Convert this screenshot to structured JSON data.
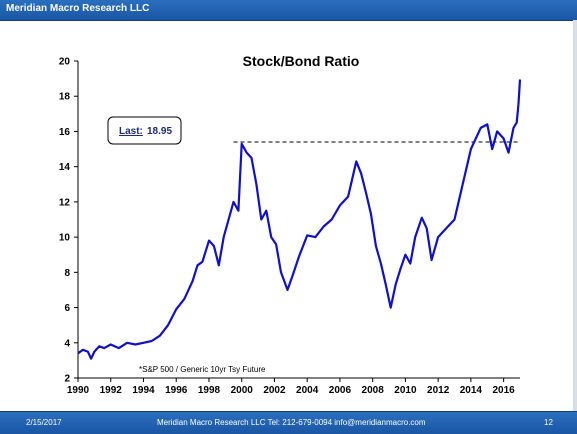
{
  "header": {
    "title": "Meridian Macro Research LLC"
  },
  "footer": {
    "date": "2/15/2017",
    "info": "Meridian Macro Research LLC   Tel: 212-679-0094   info@meridianmacro.com",
    "page": "12"
  },
  "colors": {
    "bar": "#1f5fb0",
    "line": "#1010c8",
    "reference": "#000000"
  },
  "chart_data": {
    "type": "line",
    "title": "Stock/Bond Ratio",
    "annotation": "*S&P 500 / Generic 10yr Tsy Future",
    "last_box": {
      "label": "Last:",
      "value": "18.95"
    },
    "reference_line": {
      "y": 15.4,
      "x_start": 1999.5,
      "style": "dashed"
    },
    "xlim": [
      1990,
      2017
    ],
    "ylim": [
      2,
      20
    ],
    "x_ticks": [
      1990,
      1992,
      1994,
      1996,
      1998,
      2000,
      2002,
      2004,
      2006,
      2008,
      2010,
      2012,
      2014,
      2016
    ],
    "y_ticks": [
      2,
      4,
      6,
      8,
      10,
      12,
      14,
      16,
      18,
      20
    ],
    "grid": false,
    "series": [
      {
        "x": [
          1990,
          1990.3,
          1990.6,
          1990.8,
          1991,
          1991.3,
          1991.6,
          1992,
          1992.5,
          1993,
          1993.5,
          1994,
          1994.5,
          1995,
          1995.5,
          1996,
          1996.5,
          1997,
          1997.3,
          1997.6,
          1998,
          1998.3,
          1998.6,
          1998.9,
          1999.2,
          1999.5,
          1999.8,
          2000,
          2000.3,
          2000.6,
          2000.9,
          2001.2,
          2001.5,
          2001.8,
          2002.1,
          2002.4,
          2002.8,
          2003.1,
          2003.5,
          2004,
          2004.5,
          2005,
          2005.5,
          2006,
          2006.5,
          2007,
          2007.3,
          2007.6,
          2007.9,
          2008.2,
          2008.5,
          2008.8,
          2009.1,
          2009.4,
          2009.7,
          2010,
          2010.3,
          2010.6,
          2011,
          2011.3,
          2011.6,
          2012,
          2012.5,
          2013,
          2013.5,
          2014,
          2014.3,
          2014.6,
          2015,
          2015.3,
          2015.6,
          2016,
          2016.3,
          2016.6,
          2016.8,
          2016.9,
          2017
        ],
        "y": [
          3.4,
          3.6,
          3.5,
          3.1,
          3.5,
          3.8,
          3.7,
          3.9,
          3.7,
          4.0,
          3.9,
          4.0,
          4.1,
          4.4,
          5.0,
          5.9,
          6.5,
          7.5,
          8.4,
          8.6,
          9.8,
          9.5,
          8.4,
          10.0,
          11.0,
          12.0,
          11.5,
          15.3,
          14.8,
          14.5,
          13.0,
          11.0,
          11.5,
          10.0,
          9.6,
          8.0,
          7.0,
          7.8,
          8.9,
          10.1,
          10.0,
          10.6,
          11.0,
          11.8,
          12.3,
          14.3,
          13.6,
          12.5,
          11.3,
          9.5,
          8.5,
          7.3,
          6.0,
          7.3,
          8.2,
          9.0,
          8.5,
          10.0,
          11.1,
          10.5,
          8.7,
          10.0,
          10.5,
          11.0,
          13.0,
          15.0,
          15.6,
          16.2,
          16.4,
          15.0,
          16.0,
          15.6,
          14.8,
          16.2,
          16.5,
          17.5,
          18.95
        ]
      }
    ]
  }
}
